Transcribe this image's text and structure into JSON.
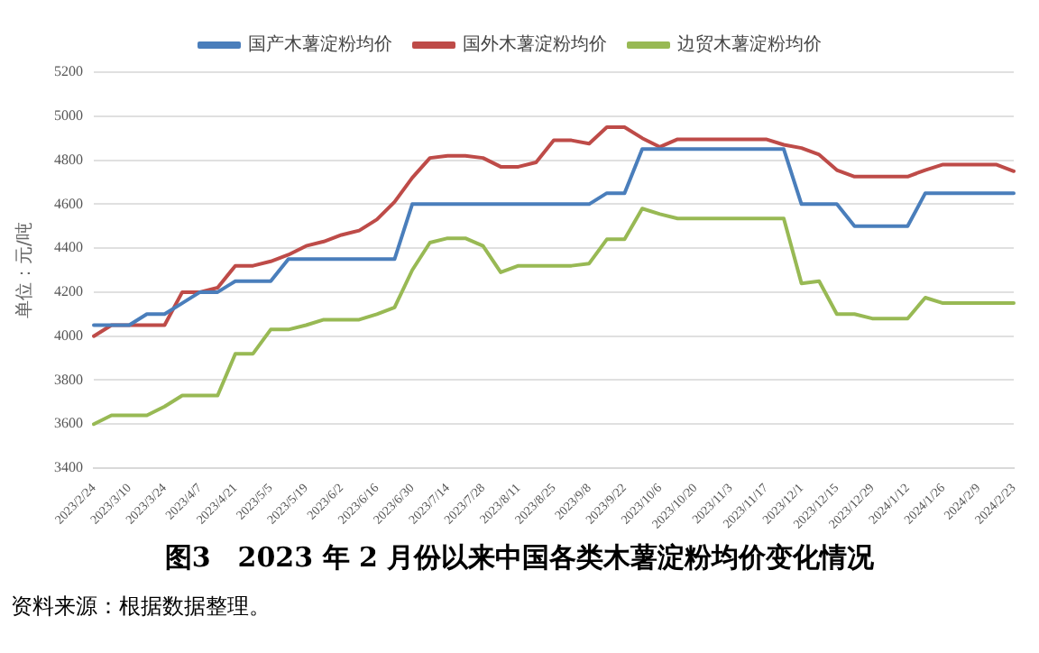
{
  "chart_data": {
    "type": "line",
    "title": "图3　2023 年 2 月份以来中国各类木薯淀粉均价变化情况",
    "ylabel": "单位：元/吨",
    "categories": [
      "2023/2/24",
      null,
      "2023/3/10",
      null,
      "2023/3/24",
      null,
      "2023/4/7",
      null,
      "2023/4/21",
      null,
      "2023/5/5",
      null,
      "2023/5/19",
      null,
      "2023/6/2",
      null,
      "2023/6/16",
      null,
      "2023/6/30",
      null,
      "2023/7/14",
      null,
      "2023/7/28",
      null,
      "2023/8/11",
      null,
      "2023/8/25",
      null,
      "2023/9/8",
      null,
      "2023/9/22",
      null,
      "2023/10/6",
      null,
      "2023/10/20",
      null,
      "2023/11/3",
      null,
      "2023/11/17",
      null,
      "2023/12/1",
      null,
      "2023/12/15",
      null,
      "2023/12/29",
      null,
      "2024/1/12",
      null,
      "2024/1/26",
      null,
      "2024/2/9",
      null,
      "2024/2/23"
    ],
    "series": [
      {
        "name": "国产木薯淀粉均价",
        "color": "#4a7ebb",
        "values": [
          4050,
          4050,
          4050,
          4100,
          4100,
          4150,
          4200,
          4200,
          4250,
          4250,
          4250,
          4350,
          4350,
          4350,
          4350,
          4350,
          4350,
          4350,
          4600,
          4600,
          4600,
          4600,
          4600,
          4600,
          4600,
          4600,
          4600,
          4600,
          4600,
          4650,
          4650,
          4850,
          4850,
          4850,
          4850,
          4850,
          4850,
          4850,
          4850,
          4850,
          4600,
          4600,
          4600,
          4500,
          4500,
          4500,
          4500,
          4650,
          4650,
          4650,
          4650,
          4650,
          4650
        ]
      },
      {
        "name": "国外木薯淀粉均价",
        "color": "#be4b48",
        "values": [
          4000,
          4050,
          4050,
          4050,
          4050,
          4200,
          4200,
          4220,
          4320,
          4320,
          4340,
          4370,
          4410,
          4430,
          4460,
          4480,
          4530,
          4610,
          4720,
          4810,
          4820,
          4820,
          4810,
          4770,
          4770,
          4790,
          4890,
          4890,
          4875,
          4950,
          4950,
          4900,
          4860,
          4895,
          4895,
          4895,
          4895,
          4895,
          4895,
          4870,
          4855,
          4825,
          4755,
          4725,
          4725,
          4725,
          4725,
          4755,
          4780,
          4780,
          4780,
          4780,
          4750
        ]
      },
      {
        "name": "边贸木薯淀粉均价",
        "color": "#98b954",
        "values": [
          3600,
          3640,
          3640,
          3640,
          3680,
          3730,
          3730,
          3730,
          3920,
          3920,
          4030,
          4030,
          4050,
          4075,
          4075,
          4075,
          4100,
          4130,
          4300,
          4425,
          4445,
          4445,
          4410,
          4290,
          4320,
          4320,
          4320,
          4320,
          4330,
          4440,
          4440,
          4580,
          4555,
          4535,
          4535,
          4535,
          4535,
          4535,
          4535,
          4535,
          4240,
          4250,
          4100,
          4100,
          4080,
          4080,
          4080,
          4175,
          4150,
          4150,
          4150,
          4150,
          4150
        ]
      }
    ],
    "ylim": [
      3400,
      5200
    ],
    "yticks": [
      3400,
      3600,
      3800,
      4000,
      4200,
      4400,
      4600,
      4800,
      5000,
      5200
    ],
    "grid": "y",
    "legend": "top",
    "marker": "none",
    "line_style": "solid",
    "annotations": [
      "资料来源：根据数据整理。"
    ]
  }
}
